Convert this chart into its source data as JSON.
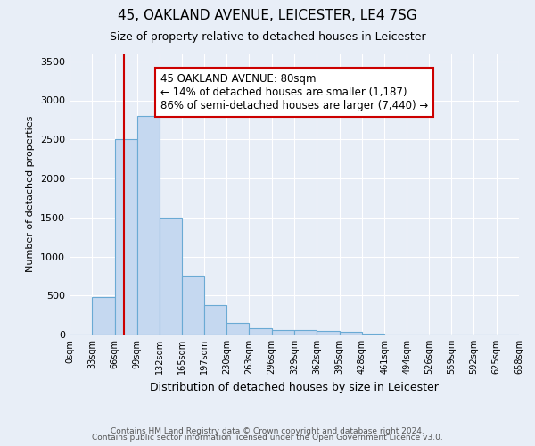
{
  "title1": "45, OAKLAND AVENUE, LEICESTER, LE4 7SG",
  "title2": "Size of property relative to detached houses in Leicester",
  "xlabel": "Distribution of detached houses by size in Leicester",
  "ylabel": "Number of detached properties",
  "bin_edges": [
    0,
    33,
    66,
    99,
    132,
    165,
    197,
    230,
    263,
    296,
    329,
    362,
    395,
    428,
    461,
    494,
    526,
    559,
    592,
    625,
    658
  ],
  "bar_heights": [
    5,
    480,
    2500,
    2800,
    1500,
    750,
    380,
    150,
    80,
    55,
    55,
    50,
    30,
    10,
    5,
    3,
    2,
    1,
    1,
    1
  ],
  "bar_color": "#c5d8f0",
  "bar_edge_color": "#6aaad4",
  "red_line_x": 80,
  "annotation_text": "45 OAKLAND AVENUE: 80sqm\n← 14% of detached houses are smaller (1,187)\n86% of semi-detached houses are larger (7,440) →",
  "annotation_box_color": "white",
  "annotation_box_edge_color": "#cc0000",
  "ylim": [
    0,
    3600
  ],
  "yticks": [
    0,
    500,
    1000,
    1500,
    2000,
    2500,
    3000,
    3500
  ],
  "tick_labels": [
    "0sqm",
    "33sqm",
    "66sqm",
    "99sqm",
    "132sqm",
    "165sqm",
    "197sqm",
    "230sqm",
    "263sqm",
    "296sqm",
    "329sqm",
    "362sqm",
    "395sqm",
    "428sqm",
    "461sqm",
    "494sqm",
    "526sqm",
    "559sqm",
    "592sqm",
    "625sqm",
    "658sqm"
  ],
  "footer1": "Contains HM Land Registry data © Crown copyright and database right 2024.",
  "footer2": "Contains public sector information licensed under the Open Government Licence v3.0.",
  "background_color": "#e8eef7",
  "grid_color": "white"
}
